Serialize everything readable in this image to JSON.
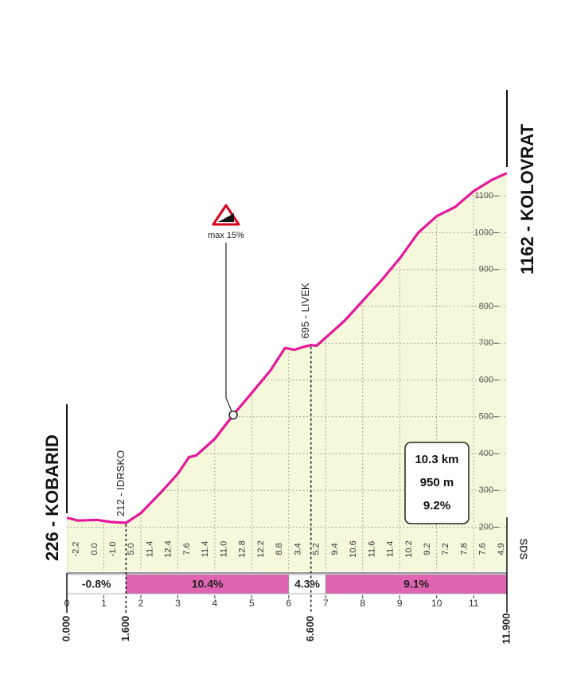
{
  "chart_data": {
    "type": "area",
    "start_label": "226 - KOBARID",
    "finish_label": "1162 - KOLOVRAT",
    "x": [
      0,
      0.3,
      0.8,
      1.2,
      1.6,
      2.0,
      2.5,
      3.0,
      3.3,
      3.5,
      4.0,
      4.5,
      5.0,
      5.5,
      5.9,
      6.15,
      6.4,
      6.6,
      6.75,
      7.0,
      7.5,
      8.0,
      8.5,
      9.0,
      9.5,
      10.0,
      10.5,
      11.0,
      11.5,
      11.9
    ],
    "values": [
      226,
      218,
      220,
      214,
      212,
      238,
      290,
      345,
      390,
      395,
      440,
      505,
      565,
      625,
      687,
      682,
      690,
      695,
      693,
      715,
      760,
      815,
      870,
      930,
      1000,
      1045,
      1070,
      1113,
      1144,
      1162
    ],
    "color": "#e5189b",
    "fill": "#f6f8dc",
    "xlim": [
      0,
      11.9
    ],
    "ylim": [
      80,
      1200
    ],
    "xticks": [
      0,
      1,
      2,
      3,
      4,
      5,
      6,
      7,
      8,
      9,
      10,
      11
    ],
    "yticks": [
      200,
      300,
      400,
      500,
      600,
      700,
      800,
      900,
      1000,
      1100
    ],
    "grid": true,
    "gradient_labels": [
      "-2.2",
      "0.0",
      "-1.0",
      "5.0",
      "11.4",
      "12.4",
      "7.6",
      "11.4",
      "11.0",
      "12.8",
      "12.2",
      "8.8",
      "3.4",
      "5.2",
      "9.4",
      "10.6",
      "11.6",
      "11.4",
      "10.2",
      "9.2",
      "7.2",
      "7.8",
      "7.6",
      "4.9"
    ],
    "segments": [
      {
        "start": 0,
        "end": 1.6,
        "label": "-0.8%",
        "color": "#ffffff"
      },
      {
        "start": 1.6,
        "end": 6.0,
        "label": "10.4%",
        "color": "#e064b2"
      },
      {
        "start": 6.0,
        "end": 7.0,
        "label": "4.3%",
        "color": "#ffffff"
      },
      {
        "start": 7.0,
        "end": 11.9,
        "label": "9.1%",
        "color": "#e064b2"
      }
    ],
    "km_markers": [
      {
        "value": 0,
        "label": "0.000"
      },
      {
        "value": 1.6,
        "label": "1.600"
      },
      {
        "value": 6.6,
        "label": "6.600"
      },
      {
        "value": 11.9,
        "label": "11.900"
      }
    ],
    "places": [
      {
        "km": 1.6,
        "label": "212 - IDRSKO"
      },
      {
        "km": 6.6,
        "label": "695 - LIVEK"
      }
    ],
    "max_gradient": {
      "label": "max 15%",
      "x": 4.5
    },
    "summary": [
      "10.3 km",
      "950 m",
      "9.2%"
    ],
    "credit": "SDS"
  }
}
